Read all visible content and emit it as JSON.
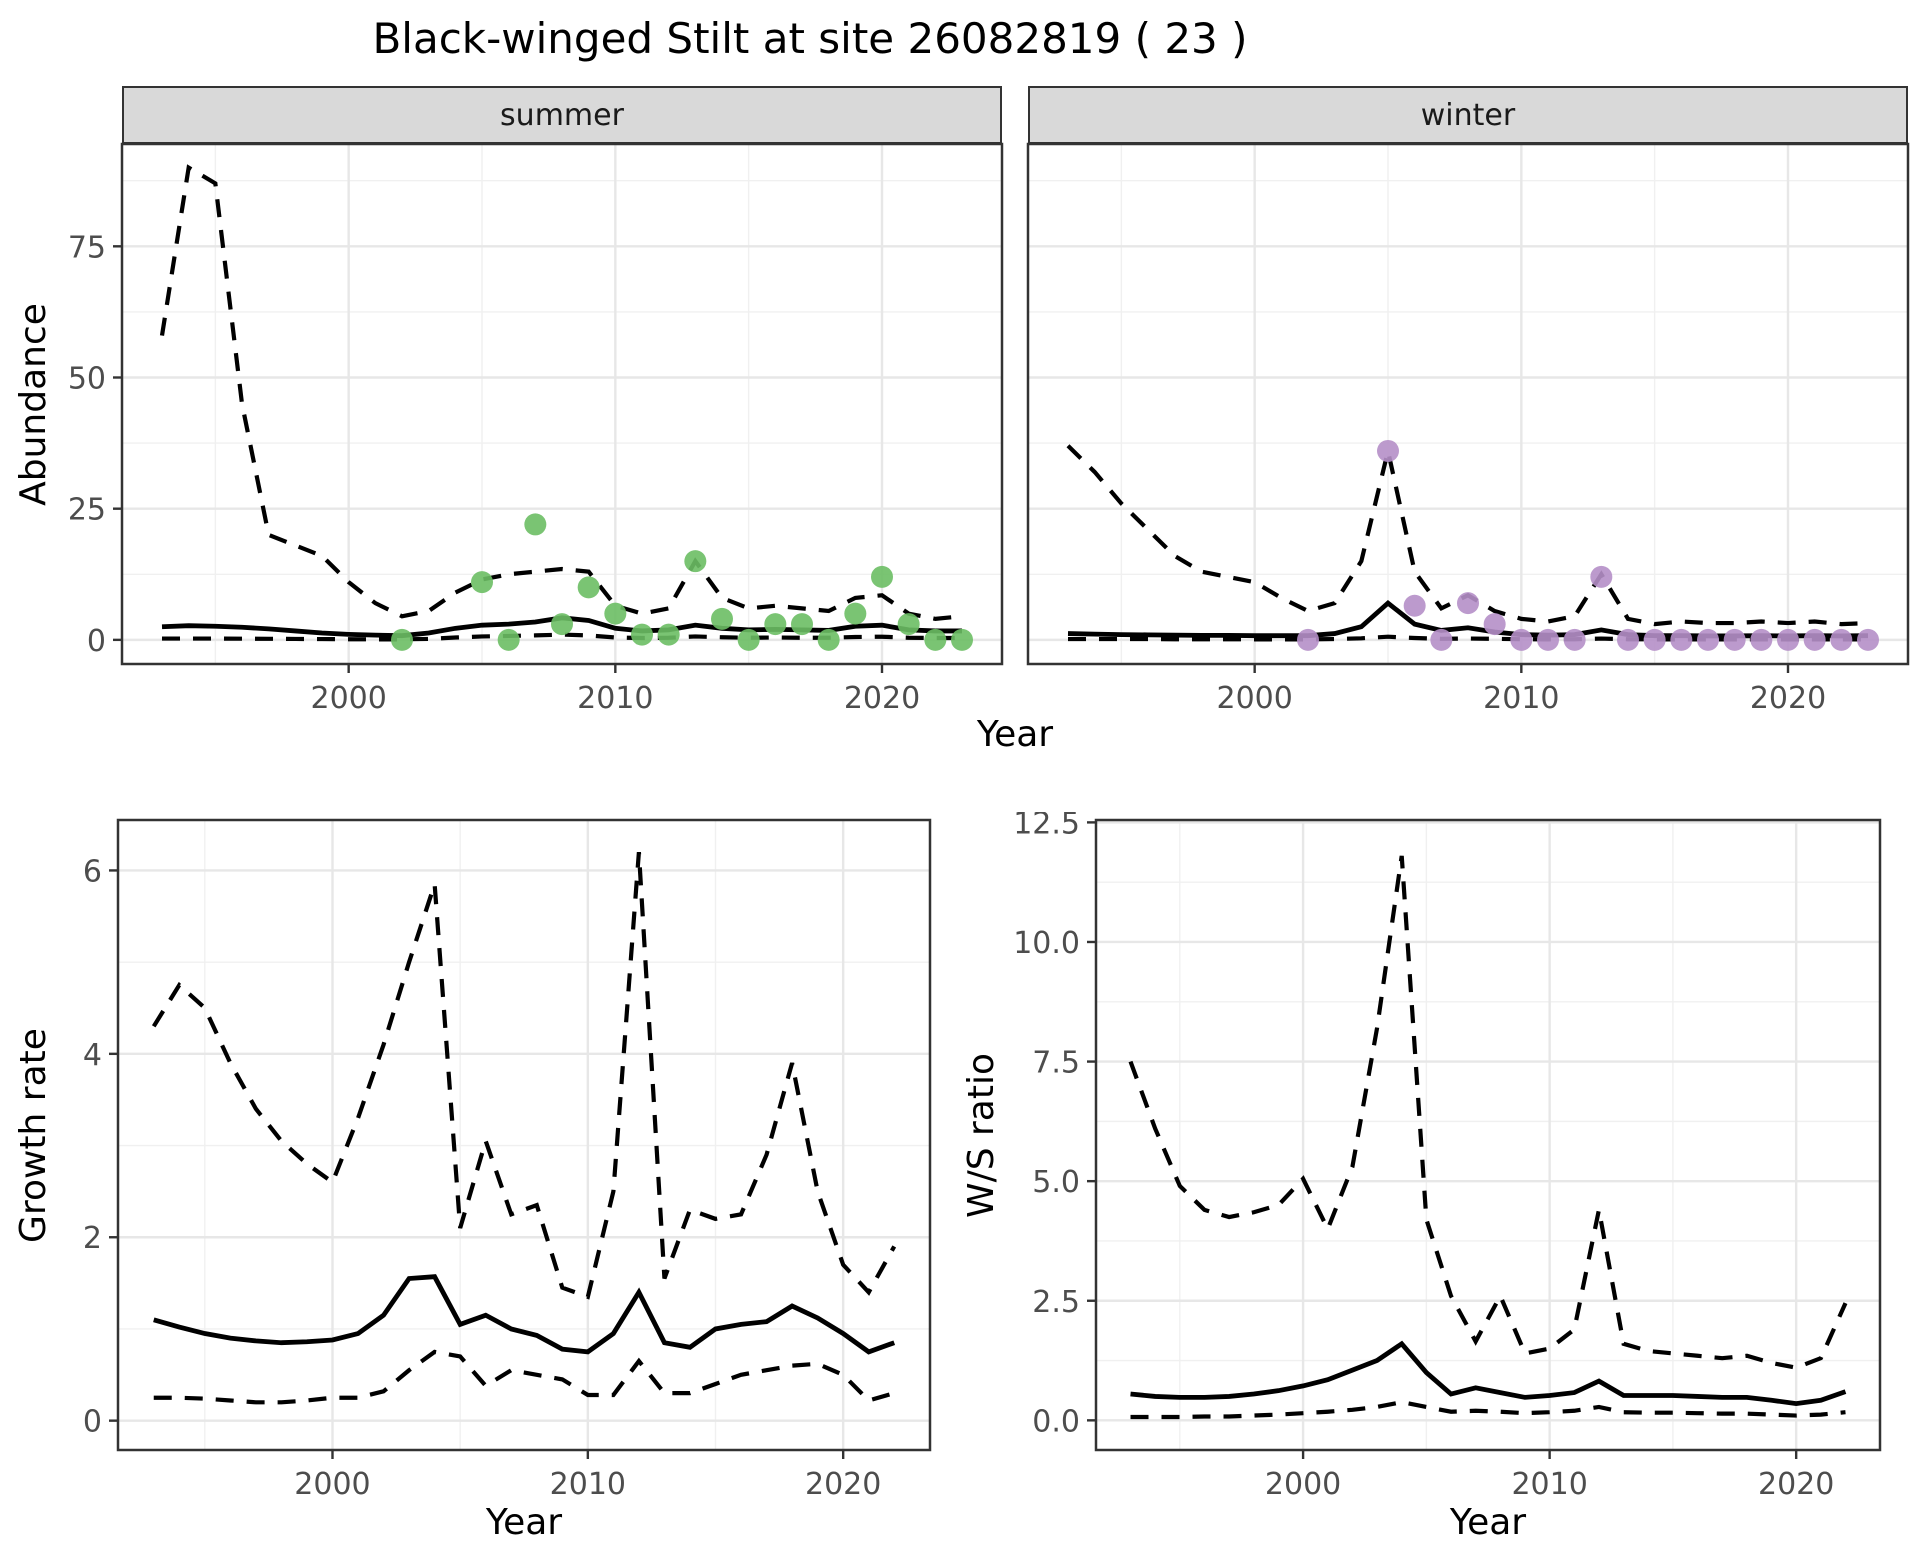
{
  "title": "Black-winged Stilt at site 26082819 ( 23 )",
  "colors": {
    "summer_points": "#6cbe64",
    "winter_points": "#b58fc8",
    "fit_line": "#000000",
    "strip_background": "#d9d9d9",
    "grid": "#ebebeb"
  },
  "chart_data": [
    {
      "id": "abundance",
      "type": "line",
      "xlabel": "Year",
      "ylabel": "Abundance",
      "xlim": [
        1991.5,
        2024.5
      ],
      "ylim": [
        -4.6,
        94.5
      ],
      "xticks": {
        "values": [
          2000,
          2010,
          2020
        ],
        "labels": [
          "2000",
          "2010",
          "2020"
        ]
      },
      "yticks": {
        "values": [
          0,
          25,
          50,
          75
        ],
        "labels": [
          "0",
          "25",
          "50",
          "75"
        ]
      },
      "grid": "major+minor",
      "legend": "none",
      "x": [
        1993,
        1994,
        1995,
        1996,
        1997,
        1998,
        1999,
        2000,
        2001,
        2002,
        2003,
        2004,
        2005,
        2006,
        2007,
        2008,
        2009,
        2010,
        2011,
        2012,
        2013,
        2014,
        2015,
        2016,
        2017,
        2018,
        2019,
        2020,
        2021,
        2022,
        2023
      ],
      "facets": [
        {
          "label": "summer",
          "series": [
            {
              "name": "upper-ci",
              "style": "dashed",
              "values": [
                58,
                90,
                87,
                45,
                20,
                18,
                16,
                11,
                7,
                4.5,
                5.5,
                9,
                11.5,
                12.5,
                13,
                13.5,
                13,
                6.5,
                5,
                6,
                15,
                8,
                6,
                6.5,
                6,
                5.5,
                8,
                8.5,
                5,
                4,
                4.5
              ]
            },
            {
              "name": "lower-ci",
              "style": "dashed",
              "values": [
                0.25,
                0.25,
                0.25,
                0.22,
                0.2,
                0.18,
                0.15,
                0.12,
                0.1,
                0.1,
                0.18,
                0.45,
                0.65,
                0.75,
                0.85,
                1.0,
                0.85,
                0.45,
                0.35,
                0.4,
                0.65,
                0.5,
                0.4,
                0.45,
                0.4,
                0.4,
                0.55,
                0.6,
                0.4,
                0.35,
                0.35
              ]
            },
            {
              "name": "fitted-mean",
              "style": "solid",
              "values": [
                2.5,
                2.7,
                2.6,
                2.4,
                2.1,
                1.7,
                1.3,
                1.05,
                0.9,
                0.8,
                1.3,
                2.2,
                2.8,
                3.0,
                3.4,
                4.2,
                3.7,
                2.2,
                1.7,
                1.9,
                2.8,
                2.2,
                1.9,
                2.0,
                1.9,
                1.8,
                2.6,
                2.8,
                1.9,
                1.7,
                1.7
              ]
            }
          ],
          "points": {
            "name": "observed-count",
            "color": "#6cbe64",
            "x": [
              2002,
              2005,
              2006,
              2007,
              2008,
              2009,
              2010,
              2011,
              2012,
              2013,
              2014,
              2015,
              2016,
              2017,
              2018,
              2019,
              2020,
              2021,
              2022,
              2023
            ],
            "y": [
              0,
              11,
              0,
              22,
              3,
              10,
              5,
              1,
              1,
              15,
              4,
              0,
              3,
              3,
              0,
              5,
              12,
              3,
              0,
              0
            ]
          }
        },
        {
          "label": "winter",
          "series": [
            {
              "name": "upper-ci",
              "style": "dashed",
              "values": [
                37,
                32,
                26,
                21,
                16,
                13,
                12,
                11,
                8,
                5.5,
                7,
                15,
                36,
                13,
                6,
                8.5,
                5.5,
                4,
                3.5,
                4.5,
                12.5,
                4,
                3,
                3.5,
                3.2,
                3.2,
                3.5,
                3.2,
                3.5,
                3,
                3.2
              ]
            },
            {
              "name": "lower-ci",
              "style": "dashed",
              "values": [
                0.15,
                0.15,
                0.15,
                0.15,
                0.12,
                0.12,
                0.12,
                0.1,
                0.1,
                0.1,
                0.15,
                0.3,
                0.6,
                0.35,
                0.2,
                0.25,
                0.2,
                0.12,
                0.1,
                0.12,
                0.25,
                0.12,
                0.1,
                0.1,
                0.1,
                0.1,
                0.1,
                0.1,
                0.1,
                0.1,
                0.1
              ]
            },
            {
              "name": "fitted-mean",
              "style": "solid",
              "values": [
                1.2,
                1.1,
                1.0,
                0.95,
                0.9,
                0.85,
                0.85,
                0.8,
                0.8,
                0.8,
                1.2,
                2.5,
                7.0,
                3.0,
                1.8,
                2.3,
                1.5,
                1.0,
                0.9,
                1.0,
                1.9,
                1.0,
                0.8,
                0.8,
                0.75,
                0.75,
                0.8,
                0.75,
                0.8,
                0.75,
                0.8
              ]
            }
          ],
          "points": {
            "name": "observed-count",
            "color": "#b58fc8",
            "x": [
              2002,
              2005,
              2006,
              2007,
              2008,
              2009,
              2010,
              2011,
              2012,
              2013,
              2014,
              2015,
              2016,
              2017,
              2018,
              2019,
              2020,
              2021,
              2022,
              2023
            ],
            "y": [
              0,
              36,
              6.5,
              0,
              7,
              3,
              0,
              0,
              0,
              12,
              0,
              0,
              0,
              0,
              0,
              0,
              0,
              0,
              0,
              0
            ]
          }
        }
      ]
    },
    {
      "id": "growth-rate",
      "type": "line",
      "xlabel": "Year",
      "ylabel": "Growth rate",
      "xlim": [
        1991.6,
        2023.4
      ],
      "ylim": [
        -0.32,
        6.55
      ],
      "xticks": {
        "values": [
          2000,
          2010,
          2020
        ],
        "labels": [
          "2000",
          "2010",
          "2020"
        ]
      },
      "yticks": {
        "values": [
          0,
          2,
          4,
          6
        ],
        "labels": [
          "0",
          "2",
          "4",
          "6"
        ]
      },
      "grid": "major+minor",
      "legend": "none",
      "x": [
        1993,
        1994,
        1995,
        1996,
        1997,
        1998,
        1999,
        2000,
        2001,
        2002,
        2003,
        2004,
        2005,
        2006,
        2007,
        2008,
        2009,
        2010,
        2011,
        2012,
        2013,
        2014,
        2015,
        2016,
        2017,
        2018,
        2019,
        2020,
        2021,
        2022
      ],
      "series": [
        {
          "name": "upper-ci",
          "style": "dashed",
          "values": [
            4.3,
            4.75,
            4.5,
            3.9,
            3.4,
            3.05,
            2.8,
            2.6,
            3.3,
            4.1,
            5.0,
            5.85,
            2.1,
            3.05,
            2.25,
            2.35,
            1.45,
            1.35,
            2.5,
            6.2,
            1.55,
            2.3,
            2.2,
            2.25,
            2.9,
            3.9,
            2.5,
            1.7,
            1.4,
            1.9
          ]
        },
        {
          "name": "lower-ci",
          "style": "dashed",
          "values": [
            0.25,
            0.25,
            0.24,
            0.22,
            0.2,
            0.2,
            0.22,
            0.25,
            0.25,
            0.32,
            0.55,
            0.75,
            0.7,
            0.38,
            0.55,
            0.5,
            0.45,
            0.28,
            0.28,
            0.65,
            0.3,
            0.3,
            0.4,
            0.5,
            0.55,
            0.6,
            0.62,
            0.5,
            0.22,
            0.3
          ]
        },
        {
          "name": "fitted-mean",
          "style": "solid",
          "values": [
            1.1,
            1.02,
            0.95,
            0.9,
            0.87,
            0.85,
            0.86,
            0.88,
            0.95,
            1.15,
            1.55,
            1.57,
            1.05,
            1.15,
            1.0,
            0.93,
            0.78,
            0.75,
            0.95,
            1.4,
            0.85,
            0.8,
            1.0,
            1.05,
            1.08,
            1.25,
            1.12,
            0.95,
            0.75,
            0.85
          ]
        }
      ]
    },
    {
      "id": "ws-ratio",
      "type": "line",
      "xlabel": "Year",
      "ylabel": "W/S ratio",
      "xlim": [
        1991.6,
        2023.4
      ],
      "ylim": [
        -0.62,
        12.55
      ],
      "xticks": {
        "values": [
          2000,
          2010,
          2020
        ],
        "labels": [
          "2000",
          "2010",
          "2020"
        ]
      },
      "yticks": {
        "values": [
          0,
          2.5,
          5,
          7.5,
          10,
          12.5
        ],
        "labels": [
          "0.0",
          "2.5",
          "5.0",
          "7.5",
          "10.0",
          "12.5"
        ]
      },
      "grid": "major+minor",
      "legend": "none",
      "x": [
        1993,
        1994,
        1995,
        1996,
        1997,
        1998,
        1999,
        2000,
        2001,
        2002,
        2003,
        2004,
        2005,
        2006,
        2007,
        2008,
        2009,
        2010,
        2011,
        2012,
        2013,
        2014,
        2015,
        2016,
        2017,
        2018,
        2019,
        2020,
        2021,
        2022
      ],
      "series": [
        {
          "name": "upper-ci",
          "style": "dashed",
          "values": [
            7.5,
            6.1,
            4.9,
            4.4,
            4.25,
            4.35,
            4.5,
            5.05,
            4.0,
            5.3,
            8.2,
            11.8,
            4.2,
            2.6,
            1.65,
            2.6,
            1.4,
            1.5,
            1.9,
            4.4,
            1.6,
            1.45,
            1.4,
            1.35,
            1.3,
            1.35,
            1.2,
            1.1,
            1.3,
            2.45
          ]
        },
        {
          "name": "lower-ci",
          "style": "dashed",
          "values": [
            0.07,
            0.07,
            0.07,
            0.08,
            0.08,
            0.1,
            0.12,
            0.15,
            0.18,
            0.22,
            0.28,
            0.38,
            0.28,
            0.18,
            0.2,
            0.18,
            0.15,
            0.17,
            0.2,
            0.28,
            0.17,
            0.16,
            0.16,
            0.15,
            0.14,
            0.14,
            0.12,
            0.1,
            0.12,
            0.17
          ]
        },
        {
          "name": "fitted-mean",
          "style": "solid",
          "values": [
            0.55,
            0.5,
            0.48,
            0.48,
            0.5,
            0.55,
            0.62,
            0.72,
            0.85,
            1.05,
            1.25,
            1.6,
            1.0,
            0.55,
            0.68,
            0.58,
            0.48,
            0.52,
            0.58,
            0.82,
            0.52,
            0.52,
            0.52,
            0.5,
            0.48,
            0.48,
            0.42,
            0.35,
            0.42,
            0.6
          ]
        }
      ]
    }
  ]
}
